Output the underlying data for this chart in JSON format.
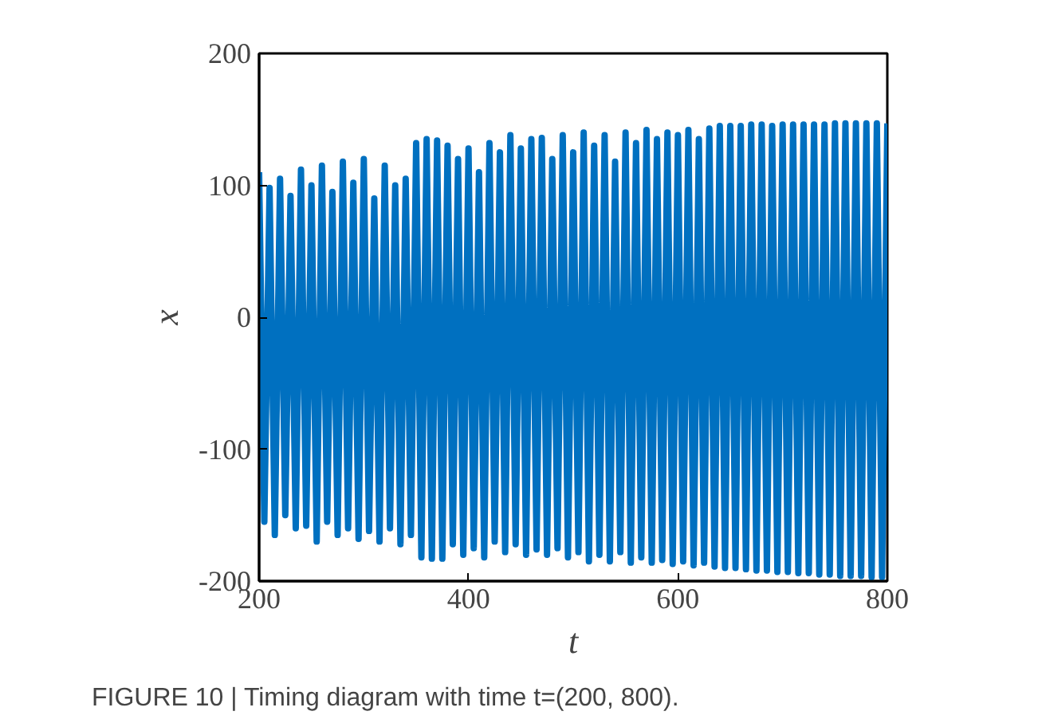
{
  "chart_data": {
    "type": "line",
    "xlabel": "t",
    "ylabel": "x",
    "annotations": [
      "FIGURE 10 | Timing diagram with time t=(200, 800)."
    ],
    "xlim": [
      200,
      800
    ],
    "xticks": [
      200,
      400,
      600,
      800
    ],
    "ylim": [
      -200,
      200
    ],
    "yticks": [
      -200,
      -100,
      0,
      100,
      200
    ],
    "grid": false,
    "series": [
      {
        "color": "#0070c0",
        "x": [
          200,
          205,
          210,
          215,
          220,
          225,
          230,
          235,
          240,
          245,
          250,
          255,
          260,
          265,
          270,
          275,
          280,
          285,
          290,
          295,
          300,
          305,
          310,
          315,
          320,
          325,
          330,
          335,
          340,
          345,
          350,
          355,
          360,
          365,
          370,
          375,
          380,
          385,
          390,
          395,
          400,
          405,
          410,
          415,
          420,
          425,
          430,
          435,
          440,
          445,
          450,
          455,
          460,
          465,
          470,
          475,
          480,
          485,
          490,
          495,
          500,
          505,
          510,
          515,
          520,
          525,
          530,
          535,
          540,
          545,
          550,
          555,
          560,
          565,
          570,
          575,
          580,
          585,
          590,
          595,
          600,
          605,
          610,
          615,
          620,
          625,
          630,
          635,
          640,
          645,
          650,
          655,
          660,
          665,
          670,
          675,
          680,
          685,
          690,
          695,
          700,
          705,
          710,
          715,
          720,
          725,
          730,
          735,
          740,
          745,
          750,
          755,
          760,
          765,
          770,
          775,
          780,
          785,
          790,
          795,
          800
        ],
        "values": [
          110,
          -155,
          98,
          -165,
          105,
          -150,
          92,
          -160,
          112,
          -158,
          100,
          -170,
          115,
          -155,
          95,
          -165,
          118,
          -160,
          102,
          -168,
          120,
          -162,
          90,
          -170,
          115,
          -160,
          100,
          -172,
          105,
          -165,
          132,
          -182,
          135,
          -183,
          134,
          -183,
          130,
          -172,
          120,
          -180,
          128,
          -175,
          110,
          -182,
          132,
          -170,
          125,
          -178,
          138,
          -172,
          128,
          -180,
          135,
          -176,
          136,
          -180,
          120,
          -175,
          138,
          -182,
          125,
          -178,
          140,
          -185,
          130,
          -180,
          138,
          -185,
          118,
          -178,
          140,
          -186,
          132,
          -182,
          142,
          -186,
          135,
          -184,
          140,
          -187,
          138,
          -185,
          142,
          -188,
          135,
          -186,
          143,
          -189,
          145,
          -190,
          145,
          -190,
          145,
          -191,
          146,
          -192,
          146,
          -192,
          145,
          -193,
          146,
          -193,
          146,
          -194,
          146,
          -194,
          146,
          -195,
          146,
          -195,
          147,
          -196,
          147,
          -196,
          147,
          -196,
          147,
          -197,
          147,
          -197,
          147
        ]
      }
    ]
  }
}
